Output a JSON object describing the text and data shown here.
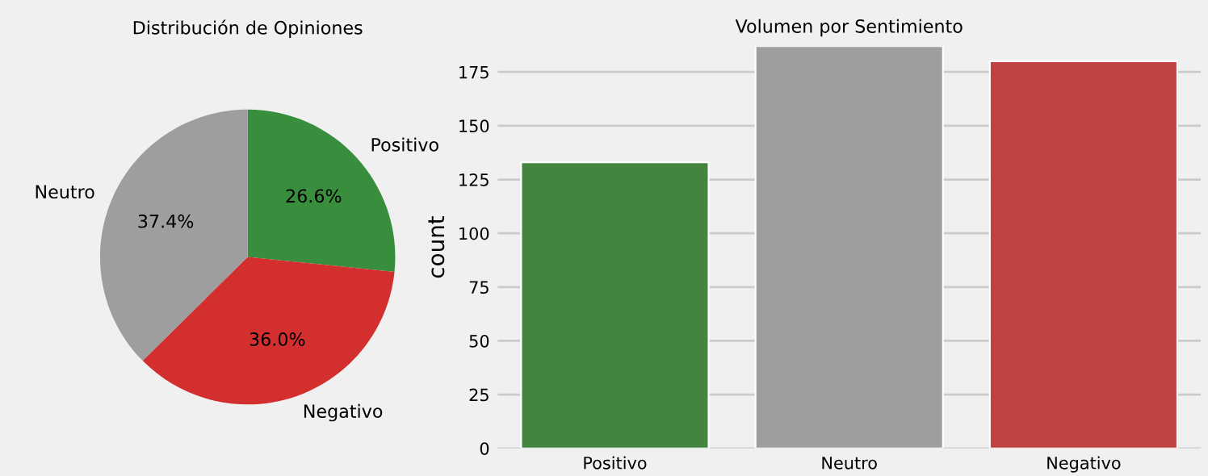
{
  "chart_data": [
    {
      "type": "pie",
      "title": "Distribución de Opiniones",
      "categories": [
        "Positivo",
        "Negativo",
        "Neutro"
      ],
      "values": [
        26.6,
        36.0,
        37.4
      ],
      "colors": [
        "#388e3c",
        "#d32f2f",
        "#9e9e9e"
      ],
      "value_labels": [
        "26.6%",
        "36.0%",
        "37.4%"
      ]
    },
    {
      "type": "bar",
      "title": "Volumen por Sentimiento",
      "ylabel": "count",
      "categories": [
        "Positivo",
        "Neutro",
        "Negativo"
      ],
      "values": [
        133,
        187,
        180
      ],
      "colors": [
        "#43843f",
        "#9e9e9e",
        "#c04343"
      ],
      "ylim": [
        0,
        187
      ],
      "yticks": [
        0,
        25,
        50,
        75,
        100,
        125,
        150,
        175
      ],
      "grid": "y"
    }
  ]
}
